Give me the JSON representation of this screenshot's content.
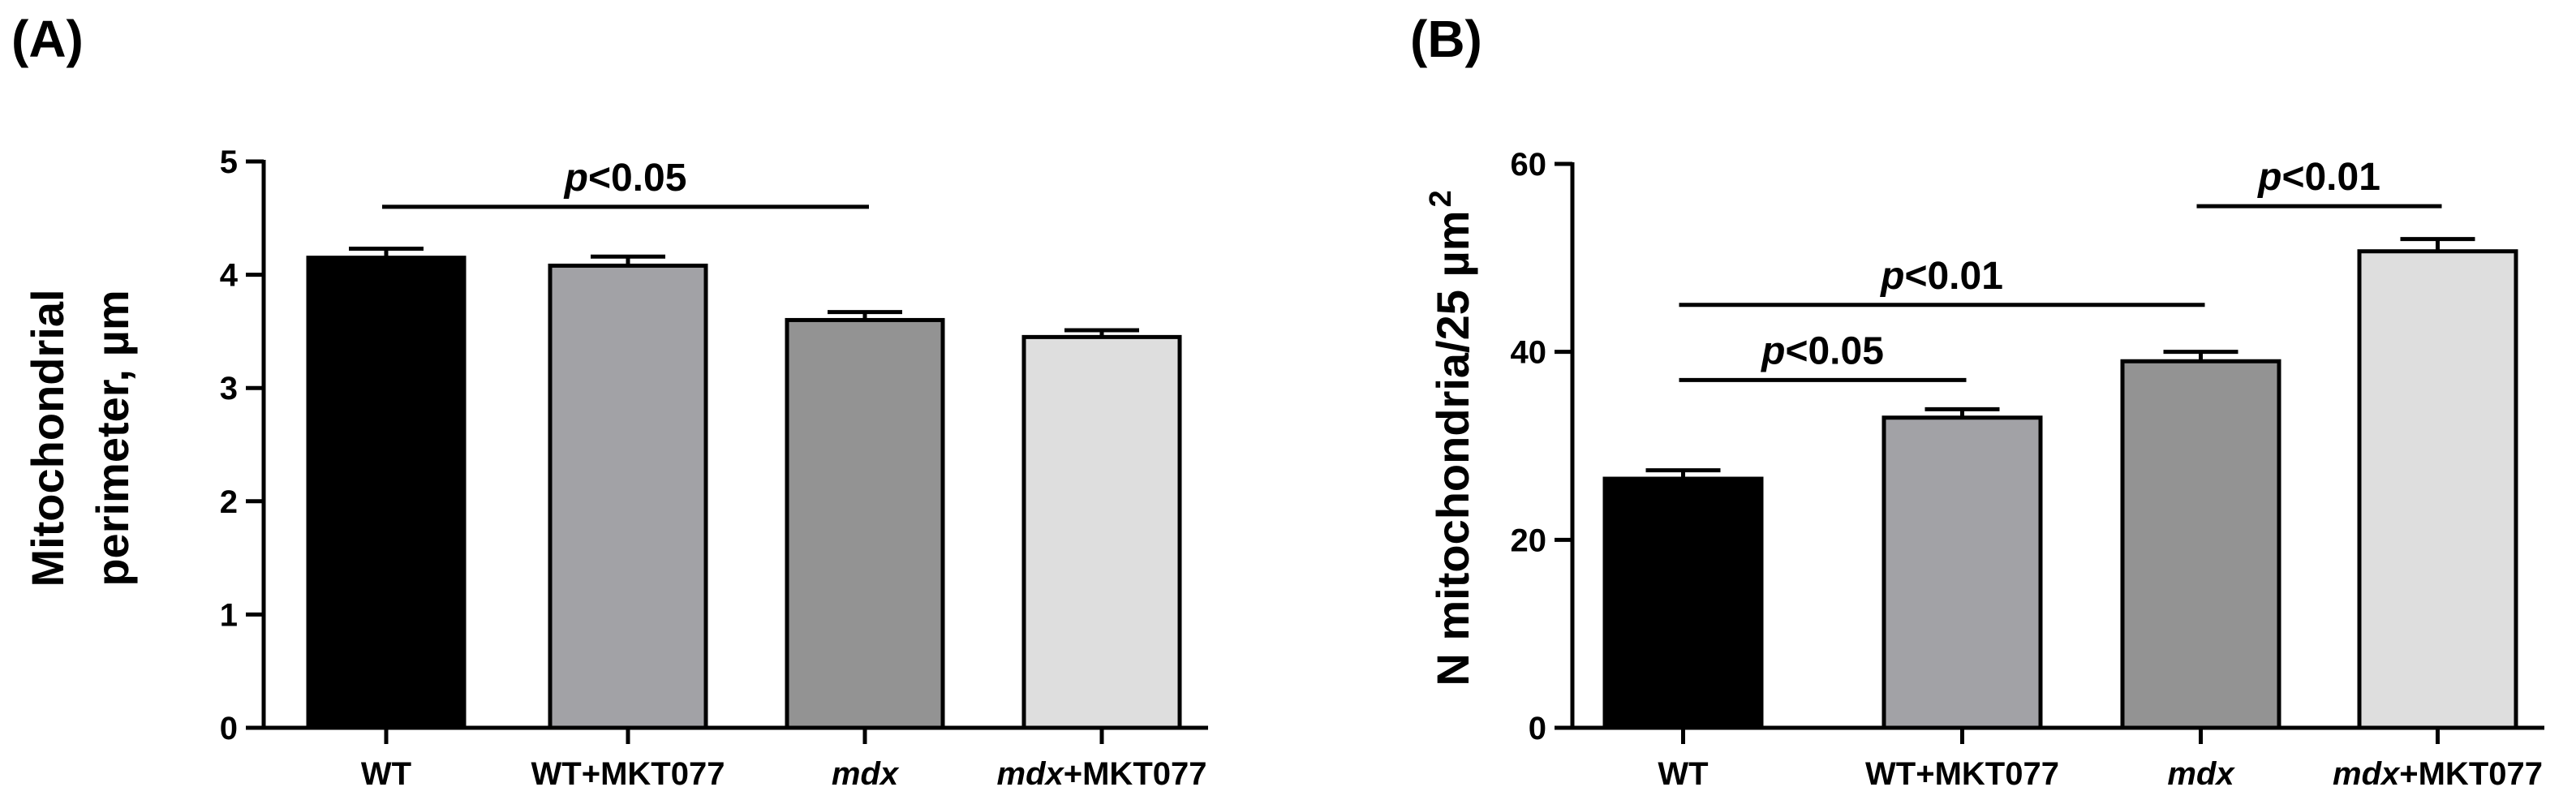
{
  "chart_data": [
    {
      "panel_label": "(A)",
      "type": "bar",
      "categories": [
        {
          "parts": [
            {
              "text": "WT",
              "italic": false
            }
          ]
        },
        {
          "parts": [
            {
              "text": "WT+MKT077",
              "italic": false
            }
          ]
        },
        {
          "parts": [
            {
              "text": "mdx",
              "italic": true
            }
          ]
        },
        {
          "parts": [
            {
              "text": "mdx",
              "italic": true
            },
            {
              "text": "+MKT077",
              "italic": false
            }
          ]
        }
      ],
      "values": [
        4.15,
        4.08,
        3.6,
        3.45
      ],
      "errors": [
        0.08,
        0.08,
        0.07,
        0.06
      ],
      "fill_colors": [
        "#000000",
        "#a2a2a6",
        "#939393",
        "#dedede"
      ],
      "ylabel_lines": [
        "Mitochondrial",
        "perimeter, µm"
      ],
      "ylim": [
        0,
        5
      ],
      "yticks": [
        0,
        1,
        2,
        3,
        4,
        5
      ],
      "significance": [
        {
          "from": 0,
          "to": 2,
          "y": 4.6,
          "p_italic": "p",
          "label": "<0.05"
        }
      ]
    },
    {
      "panel_label": "(B)",
      "type": "bar",
      "categories": [
        {
          "parts": [
            {
              "text": "WT",
              "italic": false
            }
          ]
        },
        {
          "parts": [
            {
              "text": "WT+MKT077",
              "italic": false
            }
          ]
        },
        {
          "parts": [
            {
              "text": "mdx",
              "italic": true
            }
          ]
        },
        {
          "parts": [
            {
              "text": "mdx",
              "italic": true
            },
            {
              "text": "+MKT077",
              "italic": false
            }
          ]
        }
      ],
      "values": [
        26.5,
        33,
        39,
        50.7
      ],
      "errors": [
        0.9,
        0.9,
        1.0,
        1.3
      ],
      "fill_colors": [
        "#000000",
        "#a2a2a6",
        "#939393",
        "#dedede"
      ],
      "ylabel_main": "N mitochondria/25 µm",
      "ylabel_sup": "2",
      "ylim": [
        0,
        60
      ],
      "yticks": [
        0,
        20,
        40,
        60
      ],
      "significance": [
        {
          "from": 0,
          "to": 2,
          "y": 45,
          "p_italic": "p",
          "label": "<0.01"
        },
        {
          "from": 0,
          "to": 1,
          "y": 37,
          "p_italic": "p",
          "label": "<0.05"
        },
        {
          "from": 2,
          "to": 3,
          "y": 55.5,
          "p_italic": "p",
          "label": "<0.01"
        }
      ]
    }
  ]
}
